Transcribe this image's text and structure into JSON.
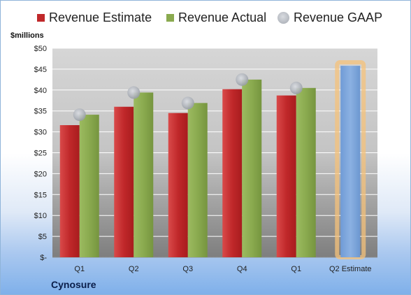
{
  "chart_data": {
    "type": "bar",
    "categories": [
      "Q1",
      "Q2",
      "Q3",
      "Q4",
      "Q1",
      "Q2 Estimate"
    ],
    "series": [
      {
        "name": "Revenue Estimate",
        "color": "#c0282a",
        "values": [
          31.6,
          36.0,
          34.5,
          40.2,
          38.7,
          null
        ]
      },
      {
        "name": "Revenue Actual",
        "color": "#8aaa4f",
        "values": [
          34.1,
          39.4,
          36.9,
          42.5,
          40.5,
          null
        ]
      },
      {
        "name": "Revenue GAAP",
        "color": "#b8bcc3",
        "marker": "dot",
        "values": [
          34.1,
          39.4,
          36.9,
          42.5,
          40.5,
          null
        ]
      },
      {
        "name": "",
        "color": "#7ea6d9",
        "highlight": "#f6c27a",
        "values": [
          null,
          null,
          null,
          null,
          null,
          45.8
        ]
      }
    ],
    "ylabel": "$millions",
    "ylim": [
      0,
      50
    ],
    "yticks": [
      0,
      5,
      10,
      15,
      20,
      25,
      30,
      35,
      40,
      45,
      50
    ],
    "ytick_labels": [
      "$-",
      "$5",
      "$10",
      "$15",
      "$20",
      "$25",
      "$30",
      "$35",
      "$40",
      "$45",
      "$50"
    ],
    "legend_position": "top",
    "grid": true
  },
  "footer": {
    "company": "Cynosure"
  }
}
